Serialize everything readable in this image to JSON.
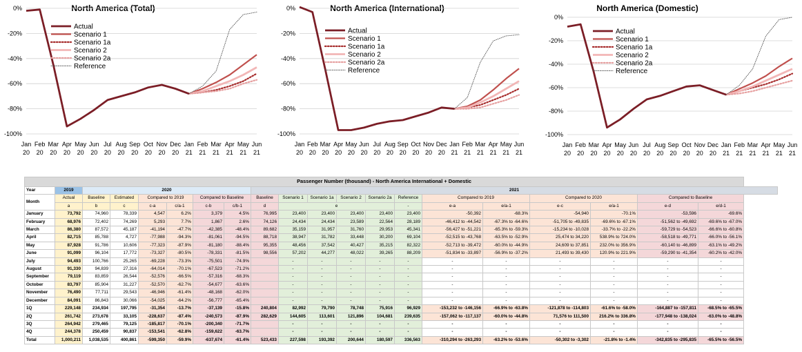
{
  "x_tick_labels": [
    [
      "Jan",
      "20"
    ],
    [
      "Feb",
      "20"
    ],
    [
      "Mar",
      "20"
    ],
    [
      "Apr",
      "20"
    ],
    [
      "May",
      "20"
    ],
    [
      "Jun",
      "20"
    ],
    [
      "Jul",
      "20"
    ],
    [
      "Aug",
      "20"
    ],
    [
      "Sep",
      "20"
    ],
    [
      "Oct",
      "20"
    ],
    [
      "Nov",
      "20"
    ],
    [
      "Dec",
      "20"
    ],
    [
      "Jan",
      "21"
    ],
    [
      "Feb",
      "21"
    ],
    [
      "Mar",
      "21"
    ],
    [
      "Apr",
      "21"
    ],
    [
      "May",
      "21"
    ],
    [
      "Jun",
      "21"
    ]
  ],
  "chart_data": [
    {
      "type": "line",
      "title": "North America (Total)",
      "y_tick_labels": [
        "0%",
        "-20%",
        "-40%",
        "-60%",
        "-80%",
        "-100%"
      ],
      "ylim": [
        -100,
        0
      ],
      "legend_position": "top-left",
      "series": [
        {
          "name": "Actual",
          "color": "#7b1e26",
          "style": "solid-thick",
          "start": 0,
          "values": [
            -2,
            -1,
            -45,
            -94,
            -88,
            -81,
            -73,
            -70,
            -67,
            -63,
            -61,
            -64,
            -68
          ]
        },
        {
          "name": "Scenario 1",
          "color": "#c0504d",
          "style": "solid",
          "start": 12,
          "values": [
            -68,
            -64,
            -59,
            -53,
            -45,
            -37
          ]
        },
        {
          "name": "Scenario 1a",
          "color": "#a62b2b",
          "style": "dotted",
          "start": 12,
          "values": [
            -68,
            -67,
            -65,
            -62,
            -58,
            -52
          ]
        },
        {
          "name": "Scenario 2",
          "color": "#f2b6b6",
          "style": "solid-thick",
          "start": 12,
          "values": [
            -68,
            -66,
            -62,
            -58,
            -53,
            -47
          ]
        },
        {
          "name": "Scenario 2a",
          "color": "#e6a0a0",
          "style": "dotted",
          "start": 12,
          "values": [
            -68,
            -67,
            -66,
            -64,
            -60,
            -57
          ]
        },
        {
          "name": "Reference",
          "color": "#555555",
          "style": "fine-dotted",
          "start": 12,
          "values": [
            -68,
            -62,
            -50,
            -17,
            -5,
            -3
          ]
        }
      ]
    },
    {
      "type": "line",
      "title": "North America (International)",
      "y_tick_labels": [
        "0%",
        "-20%",
        "-40%",
        "-60%",
        "-80%",
        "-100%"
      ],
      "ylim": [
        -100,
        0
      ],
      "legend_position": "top-left",
      "series": [
        {
          "name": "Actual",
          "color": "#7b1e26",
          "style": "solid-thick",
          "start": 0,
          "values": [
            1,
            -3,
            -49,
            -97,
            -97,
            -95,
            -92,
            -90,
            -89,
            -86,
            -83,
            -79,
            -80
          ]
        },
        {
          "name": "Scenario 1",
          "color": "#c0504d",
          "style": "solid",
          "start": 12,
          "values": [
            -80,
            -78,
            -73,
            -65,
            -56,
            -48
          ]
        },
        {
          "name": "Scenario 1a",
          "color": "#a62b2b",
          "style": "dotted",
          "start": 12,
          "values": [
            -80,
            -79,
            -77,
            -73,
            -69,
            -64
          ]
        },
        {
          "name": "Scenario 2",
          "color": "#f2b6b6",
          "style": "solid-thick",
          "start": 12,
          "values": [
            -80,
            -79,
            -75,
            -70,
            -64,
            -58
          ]
        },
        {
          "name": "Scenario 2a",
          "color": "#e6a0a0",
          "style": "dotted",
          "start": 12,
          "values": [
            -80,
            -80,
            -79,
            -76,
            -73,
            -69
          ]
        },
        {
          "name": "Reference",
          "color": "#555555",
          "style": "fine-dotted",
          "start": 12,
          "values": [
            -80,
            -71,
            -43,
            -26,
            -22,
            -21
          ]
        }
      ]
    },
    {
      "type": "line",
      "title": "North America (Domestic)",
      "y_tick_labels": [
        "0%",
        "-20%",
        "-40%",
        "-60%",
        "-80%",
        "-100%"
      ],
      "ylim": [
        -100,
        0
      ],
      "legend_position": "top-left",
      "series": [
        {
          "name": "Actual",
          "color": "#7b1e26",
          "style": "solid-thick",
          "start": 0,
          "values": [
            -8,
            -6,
            -47,
            -94,
            -87,
            -78,
            -70,
            -67,
            -63,
            -59,
            -58,
            -62,
            -66
          ]
        },
        {
          "name": "Scenario 1",
          "color": "#c0504d",
          "style": "solid",
          "start": 12,
          "values": [
            -66,
            -61,
            -56,
            -50,
            -42,
            -35
          ]
        },
        {
          "name": "Scenario 1a",
          "color": "#a62b2b",
          "style": "dotted",
          "start": 12,
          "values": [
            -66,
            -63,
            -60,
            -57,
            -53,
            -48
          ]
        },
        {
          "name": "Scenario 2",
          "color": "#f2b6b6",
          "style": "solid-thick",
          "start": 12,
          "values": [
            -66,
            -63,
            -59,
            -54,
            -49,
            -44
          ]
        },
        {
          "name": "Scenario 2a",
          "color": "#e6a0a0",
          "style": "dotted",
          "start": 12,
          "values": [
            -66,
            -65,
            -63,
            -60,
            -57,
            -54
          ]
        },
        {
          "name": "Reference",
          "color": "#555555",
          "style": "fine-dotted",
          "start": 12,
          "values": [
            -66,
            -58,
            -44,
            -16,
            -2,
            0
          ]
        }
      ]
    }
  ],
  "table": {
    "title": "Passenger Number (thousand) - North America International + Domestic",
    "hdr_year": "Year",
    "hdr_month": "Month",
    "y2019": "2019",
    "y2020": "2020",
    "y2021": "2021",
    "h_actual": "Actual",
    "h_baseline": "Baseline",
    "h_estimated": "Estimated",
    "h_cmp2019": "Compared to 2019",
    "h_cmpbase": "Compared to Baseline",
    "h_baseline21": "Baseline",
    "h_s1": "Scenario 1",
    "h_s1a": "Scenario 1a",
    "h_s2": "Scenario 2",
    "h_s2a": "Scenario 2a",
    "h_ref": "Reference",
    "h_cmp2019b": "Compared to 2019",
    "h_cmp2020": "Compared to 2020",
    "h_cmpbase21": "Compared to Baseline",
    "codes": [
      "a",
      "b",
      "c",
      "c-a",
      "c/a-1",
      "c-b",
      "c/b-1",
      "d",
      "e",
      "-",
      "e-a",
      "e/a-1",
      "e-c",
      "e/a-1",
      "e-d",
      "e/d-1"
    ],
    "rows": [
      [
        "January",
        "73,792",
        "74,960",
        "78,339",
        "4,547",
        "6.2%",
        "3,379",
        "4.5%",
        "76,995",
        "23,400",
        "23,400",
        "23,400",
        "23,400",
        "23,400",
        "-50,392",
        "-68.3%",
        "-54,940",
        "-70.1%",
        "-53,596",
        "-69.6%"
      ],
      [
        "February",
        "68,976",
        "72,402",
        "74,269",
        "5,293",
        "7.7%",
        "1,867",
        "2.6%",
        "74,126",
        "24,434",
        "24,434",
        "23,589",
        "22,564",
        "28,189",
        "-46,412 to -44,542",
        "-67.3% to -64.6%",
        "-51,705 to -49,835",
        "-69.6% to -67.1%",
        "-51,562 to -49,692",
        "-69.6% to -67.0%"
      ],
      [
        "March",
        "86,380",
        "87,572",
        "45,187",
        "-41,194",
        "-47.7%",
        "-42,385",
        "-48.4%",
        "89,682",
        "35,159",
        "31,957",
        "31,760",
        "29,953",
        "45,341",
        "-56,427 to -51,221",
        "-65.3% to -59.3%",
        "-15,234 to -10,028",
        "-33.7% to -22.2%",
        "-59,729 to -54,523",
        "-66.6% to -60.8%"
      ],
      [
        "April",
        "82,715",
        "85,788",
        "4,727",
        "-77,988",
        "-94.3%",
        "-81,061",
        "-94.5%",
        "88,718",
        "38,947",
        "31,782",
        "33,448",
        "30,200",
        "69,104",
        "-52,515 to -43,768",
        "-63.5% to -52.9%",
        "25,474 to 34,220",
        "538.9% to 724.0%",
        "-58,518 to -49,771",
        "-66.0% to -56.1%"
      ],
      [
        "May",
        "87,928",
        "91,786",
        "10,606",
        "-77,323",
        "-87.9%",
        "-81,180",
        "-88.4%",
        "95,355",
        "48,456",
        "37,542",
        "40,427",
        "35,215",
        "82,322",
        "-52,713 to -39,472",
        "-60.0% to -44.9%",
        "24,609 to 37,851",
        "232.0% to 356.9%",
        "-60,140 to -46,899",
        "-63.1% to -49.2%"
      ],
      [
        "June",
        "91,099",
        "96,104",
        "17,772",
        "-73,327",
        "-80.5%",
        "-78,331",
        "-81.5%",
        "98,556",
        "57,202",
        "44,277",
        "48,022",
        "39,265",
        "88,209",
        "-51,834 to -33,897",
        "-56.9% to -37.2%",
        "21,493 to 39,430",
        "120.9% to 221.9%",
        "-59,290 to -41,354",
        "-60.2% to -42.0%"
      ],
      [
        "July",
        "94,493",
        "100,766",
        "25,265",
        "-69,228",
        "-73.3%",
        "-75,501",
        "-74.9%",
        "",
        "-",
        "-",
        "-",
        "-",
        "-",
        "-",
        "-",
        "-",
        "-",
        "-",
        "-"
      ],
      [
        "August",
        "91,330",
        "94,839",
        "27,316",
        "-64,014",
        "-70.1%",
        "-67,523",
        "-71.2%",
        "",
        "-",
        "-",
        "-",
        "-",
        "-",
        "-",
        "-",
        "-",
        "-",
        "-",
        "-"
      ],
      [
        "September",
        "79,119",
        "83,859",
        "26,544",
        "-52,576",
        "-66.5%",
        "-57,316",
        "-68.3%",
        "",
        "-",
        "-",
        "-",
        "-",
        "-",
        "-",
        "-",
        "-",
        "-",
        "-",
        "-"
      ],
      [
        "October",
        "83,797",
        "85,904",
        "31,227",
        "-52,570",
        "-62.7%",
        "-54,677",
        "-63.6%",
        "",
        "-",
        "-",
        "-",
        "-",
        "-",
        "-",
        "-",
        "-",
        "-",
        "-",
        "-"
      ],
      [
        "November",
        "76,490",
        "77,711",
        "29,543",
        "-46,946",
        "-61.4%",
        "-48,168",
        "-62.0%",
        "",
        "-",
        "-",
        "-",
        "-",
        "-",
        "-",
        "-",
        "-",
        "-",
        "-",
        "-"
      ],
      [
        "December",
        "84,091",
        "86,843",
        "30,066",
        "-54,025",
        "-64.2%",
        "-56,777",
        "-65.4%",
        "",
        "-",
        "-",
        "-",
        "-",
        "-",
        "-",
        "-",
        "-",
        "-",
        "-",
        "-"
      ],
      [
        "1Q",
        "229,148",
        "234,934",
        "197,795",
        "-31,354",
        "-13.7%",
        "-37,139",
        "-15.8%",
        "240,804",
        "82,992",
        "79,790",
        "78,748",
        "75,916",
        "96,929",
        "-153,232 to -146,156",
        "-66.9% to -63.8%",
        "-121,878 to -114,803",
        "-61.6% to -58.0%",
        "-164,887 to -157,811",
        "-68.5% to -65.5%"
      ],
      [
        "2Q",
        "261,742",
        "273,678",
        "33,105",
        "-228,637",
        "-87.4%",
        "-240,573",
        "-87.9%",
        "282,629",
        "144,605",
        "113,601",
        "121,896",
        "104,681",
        "239,635",
        "-157,062 to -117,137",
        "-60.0% to -44.8%",
        "71,576 to 111,500",
        "216.2% to 336.8%",
        "-177,948 to -138,024",
        "-63.0% to -48.8%"
      ],
      [
        "3Q",
        "264,942",
        "279,465",
        "79,125",
        "-185,817",
        "-70.1%",
        "-200,340",
        "-71.7%",
        "",
        "-",
        "-",
        "-",
        "-",
        "-",
        "-",
        "-",
        "-",
        "-",
        "-",
        "-"
      ],
      [
        "4Q",
        "244,378",
        "250,459",
        "90,837",
        "-153,541",
        "-62.8%",
        "-159,622",
        "-63.7%",
        "",
        "-",
        "-",
        "-",
        "-",
        "-",
        "-",
        "-",
        "-",
        "-",
        "-",
        "-"
      ],
      [
        "Total",
        "1,000,211",
        "1,038,535",
        "400,861",
        "-599,350",
        "-59.9%",
        "-637,674",
        "-61.4%",
        "523,433",
        "227,598",
        "193,392",
        "200,644",
        "180,597",
        "336,563",
        "-310,294 to -263,293",
        "-63.2% to -53.6%",
        "-50,302 to -3,302",
        "-21.8% to -1.4%",
        "-342,835 to -295,835",
        "-65.5% to -56.5%"
      ]
    ]
  }
}
